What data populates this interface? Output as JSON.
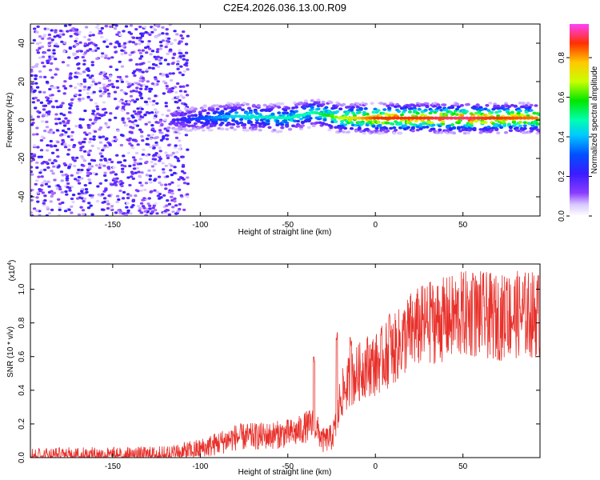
{
  "title": "C2E4.2026.036.13.00.R09",
  "spectrogram": {
    "type": "heatmap",
    "xlabel": "Height of straight line (km)",
    "ylabel": "Frequency (Hz)",
    "xlim": [
      -197,
      94
    ],
    "ylim": [
      -50,
      50
    ],
    "xticks": [
      -150,
      -100,
      -50,
      0,
      50
    ],
    "yticks": [
      -40,
      -20,
      0,
      20,
      40
    ],
    "colorbar": {
      "label": "Normalized spectral amplitude",
      "range": [
        0,
        0.97
      ],
      "ticks": [
        "0.0",
        "0.2",
        "0.4",
        "0.6",
        "0.8"
      ],
      "tick_values": [
        0,
        0.2,
        0.4,
        0.6,
        0.8
      ]
    },
    "noise_region_x": [
      -197,
      -115
    ],
    "ridge": {
      "description_x": [
        -115,
        -80,
        -50,
        -35,
        -20,
        0,
        20,
        50,
        70,
        94
      ],
      "center_hz": [
        0,
        2,
        1,
        4,
        1,
        1,
        1,
        1,
        1,
        1
      ],
      "peak_amplitude": [
        0.2,
        0.45,
        0.5,
        0.5,
        0.7,
        0.9,
        0.9,
        0.95,
        0.9,
        0.85
      ]
    }
  },
  "snr": {
    "type": "line",
    "xlabel": "Height of straight line (km)",
    "ylabel": "SNR (10 * v/v)",
    "multiplier": "(x10",
    "exponent": "4",
    "multiplier_close": ")",
    "xlim": [
      -197,
      94
    ],
    "ylim": [
      0,
      1.15
    ],
    "xticks": [
      -150,
      -100,
      -50,
      0,
      50
    ],
    "yticks": [
      0,
      0.2,
      0.4,
      0.6,
      0.8,
      1.0
    ],
    "ytick_labels": [
      "0.0",
      "0.2",
      "0.4",
      "0.6",
      "0.8",
      "1.0"
    ],
    "color": "#e8302a",
    "trend_x": [
      -197,
      -150,
      -120,
      -100,
      -80,
      -60,
      -45,
      -40,
      -35,
      -30,
      -25,
      -22,
      -20,
      -15,
      -10,
      -5,
      0,
      5,
      10,
      20,
      30,
      40,
      50,
      60,
      70,
      80,
      94
    ],
    "trend_y": [
      0.01,
      0.01,
      0.015,
      0.05,
      0.12,
      0.13,
      0.15,
      0.18,
      0.2,
      0.1,
      0.12,
      0.2,
      0.36,
      0.45,
      0.5,
      0.55,
      0.55,
      0.6,
      0.63,
      0.75,
      0.8,
      0.82,
      0.85,
      0.85,
      0.83,
      0.85,
      0.85
    ],
    "spikes": [
      {
        "x": -35,
        "y": 0.62
      },
      {
        "x": -22,
        "y": 0.76
      },
      {
        "x": -14,
        "y": 0.73
      },
      {
        "x": 8,
        "y": 0.86
      },
      {
        "x": 32,
        "y": 0.95
      },
      {
        "x": 56,
        "y": 1.12
      },
      {
        "x": 75,
        "y": 1.1
      }
    ]
  }
}
